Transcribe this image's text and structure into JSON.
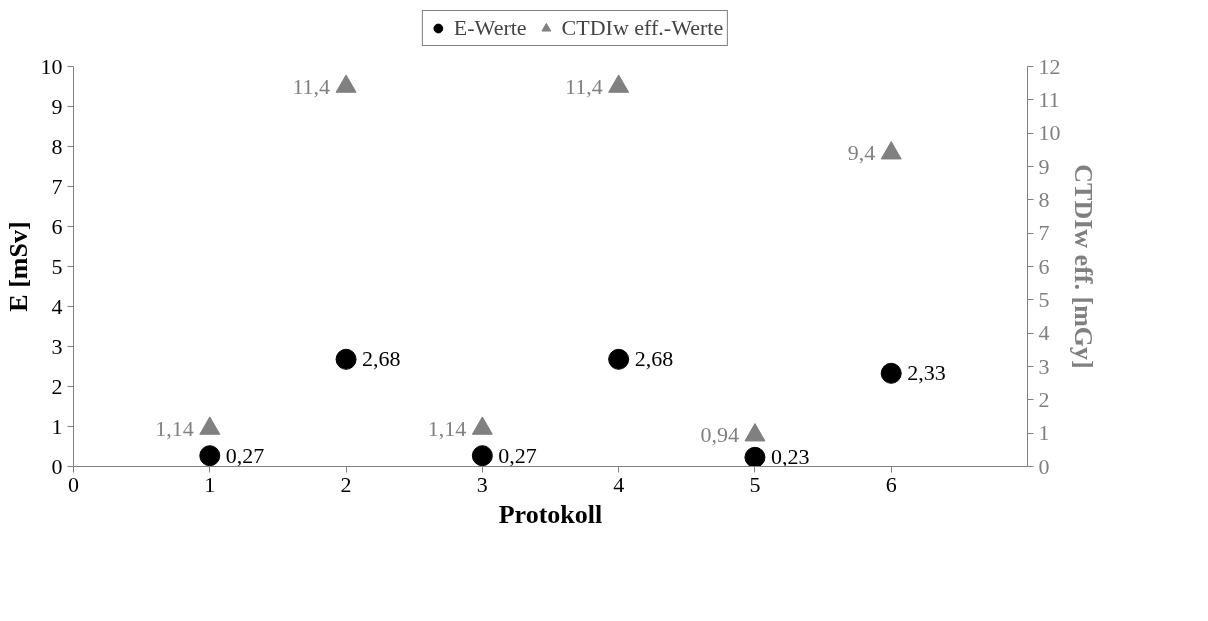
{
  "chart_data": {
    "type": "scatter",
    "xlabel": "Protokoll",
    "ylabel": "E [mSv]",
    "y2label": "CTDIw eff. [mGy]",
    "x": [
      1,
      2,
      3,
      4,
      5,
      6
    ],
    "xlim": [
      0,
      7
    ],
    "xticks": [
      0,
      1,
      2,
      3,
      4,
      5,
      6
    ],
    "ylim": [
      0,
      10
    ],
    "yticks": [
      0,
      1,
      2,
      3,
      4,
      5,
      6,
      7,
      8,
      9,
      10
    ],
    "y2lim": [
      0,
      12
    ],
    "y2ticks": [
      0,
      1,
      2,
      3,
      4,
      5,
      6,
      7,
      8,
      9,
      10,
      11,
      12
    ],
    "grid": false,
    "legend": "top",
    "series": [
      {
        "name": "E-Werte",
        "color": "#000000",
        "marker": "circle",
        "values": [
          0.27,
          2.68,
          0.27,
          2.68,
          0.23,
          2.33
        ],
        "value_labels": [
          "0,27",
          "2,68",
          "0,27",
          "2,68",
          "0,23",
          "2,33"
        ]
      },
      {
        "name": "CTDIw eff.-Werte",
        "color": "#808080",
        "marker": "triangle",
        "axis": "y2",
        "values": [
          1.14,
          11.4,
          1.14,
          11.4,
          0.94,
          9.4
        ],
        "value_labels": [
          "1,14",
          "11,4",
          "1,14",
          "11,4",
          "0,94",
          "9,4"
        ]
      }
    ]
  }
}
